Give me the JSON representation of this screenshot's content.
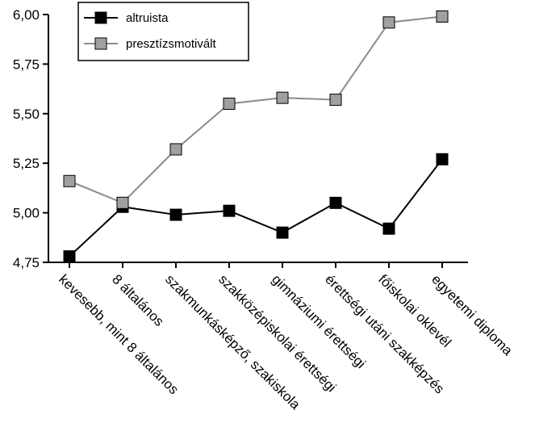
{
  "chart_data": {
    "type": "line",
    "categories": [
      "kevesebb, mint 8 általános",
      "8 általános",
      "szakmunkásképző, szakiskola",
      "szakközépiskolai érettségi",
      "gimnáziumi érettségi",
      "érettségi utáni szakképzés",
      "főiskolai oklevél",
      "egyetemi diploma"
    ],
    "series": [
      {
        "name": "altruista",
        "color": "#000000",
        "marker_fill": "#000000",
        "values": [
          4.78,
          5.03,
          4.99,
          5.01,
          4.9,
          5.05,
          4.92,
          5.27
        ]
      },
      {
        "name": "presztízsmotivált",
        "color": "#8c8c8c",
        "marker_fill": "#a0a0a0",
        "values": [
          5.16,
          5.05,
          5.32,
          5.55,
          5.58,
          5.57,
          5.96,
          5.99
        ]
      }
    ],
    "yticks": [
      "4,75",
      "5,00",
      "5,25",
      "5,50",
      "5,75",
      "6,00"
    ],
    "ylim": [
      4.75,
      6.0
    ],
    "grid": false,
    "legend_position": "top-left"
  }
}
